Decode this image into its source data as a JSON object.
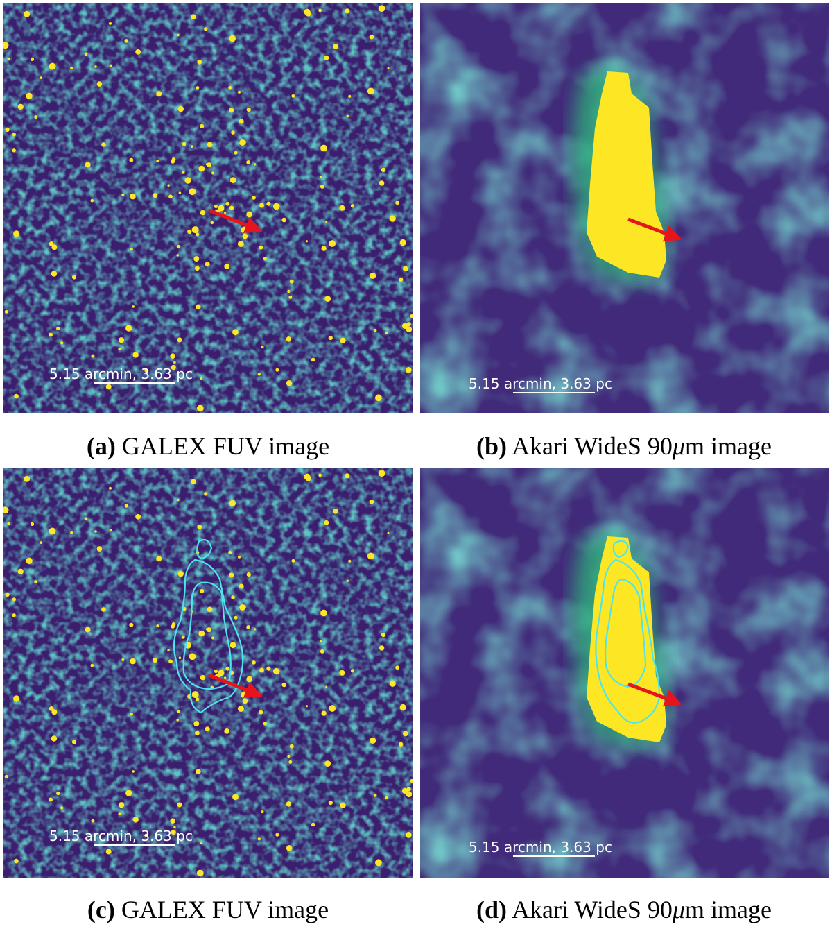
{
  "panels": [
    {
      "id": "a",
      "letter": "a",
      "caption": "GALEX FUV image",
      "scalebar": "5.15 arcmin, 3.63 pc"
    },
    {
      "id": "b",
      "letter": "b",
      "caption_pre": "Akari WideS 90",
      "caption_mu": "μ",
      "caption_post": "m image",
      "scalebar": "5.15 arcmin, 3.63 pc"
    },
    {
      "id": "c",
      "letter": "c",
      "caption": "GALEX FUV image",
      "scalebar": "5.15 arcmin, 3.63 pc"
    },
    {
      "id": "d",
      "letter": "d",
      "caption_pre": "Akari WideS 90",
      "caption_mu": "μ",
      "caption_post": "m image",
      "scalebar": "5.15 arcmin, 3.63 pc"
    }
  ],
  "colors": {
    "background_dark": "#3b1f6e",
    "bright": "#fde725",
    "mid": "#21918c",
    "contour": "#4fe3ee",
    "arrow": "#e8141c",
    "scalebar": "#ffffff"
  }
}
